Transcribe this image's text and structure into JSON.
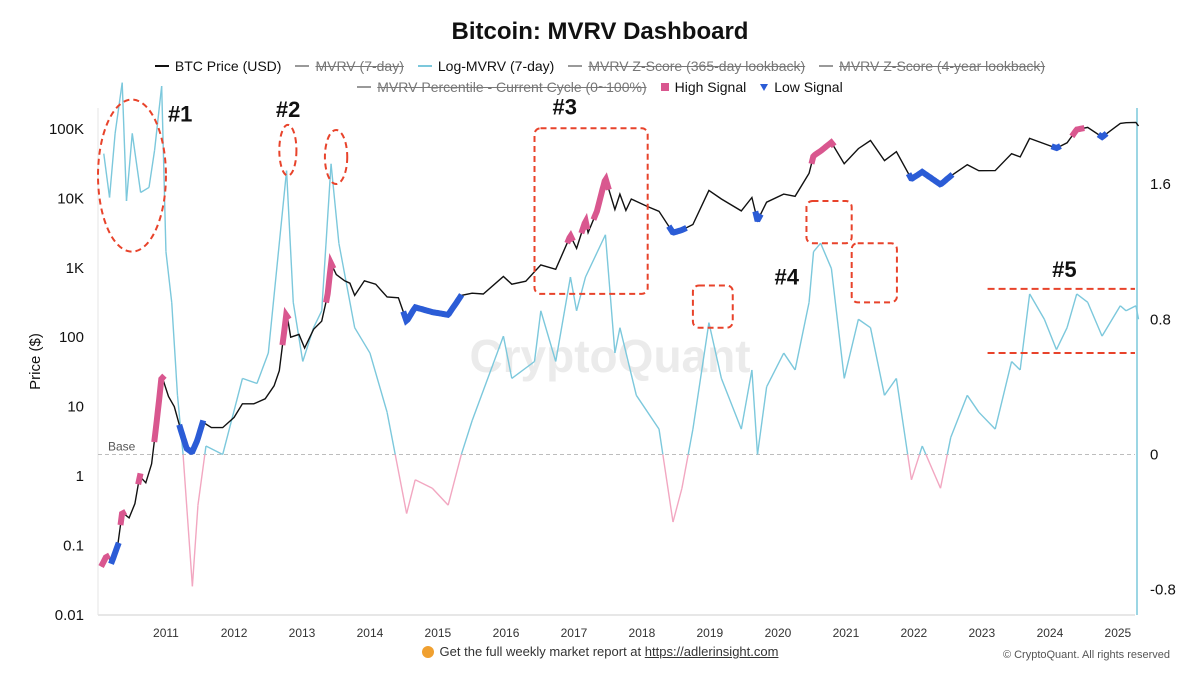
{
  "chart_data": {
    "type": "line",
    "title": "Bitcoin: MVRV Dashboard",
    "ylabel": "Price ($)",
    "y_scale": "log",
    "ylim": [
      0.01,
      200000
    ],
    "y2lim": [
      -0.95,
      2.05
    ],
    "x_range": [
      "2010-07",
      "2025-10"
    ],
    "x_ticks": [
      "2011",
      "2012",
      "2013",
      "2014",
      "2015",
      "2016",
      "2017",
      "2018",
      "2019",
      "2020",
      "2021",
      "2022",
      "2023",
      "2024",
      "2025"
    ],
    "y_ticks": [
      "0.01",
      "0.1",
      "1",
      "10",
      "100",
      "1K",
      "10K",
      "100K"
    ],
    "y2_ticks": [
      "-0.8",
      "0",
      "0.8",
      "1.6"
    ],
    "base_label": "Base",
    "legend": [
      {
        "label": "BTC Price (USD)",
        "color": "#111111",
        "marker": "line",
        "active": true
      },
      {
        "label": "MVRV (7-day)",
        "color": "#999999",
        "marker": "line",
        "active": false
      },
      {
        "label": "Log-MVRV (7-day)",
        "color": "#7cc8dc",
        "marker": "line",
        "active": true
      },
      {
        "label": "MVRV Z-Score (365-day lookback)",
        "color": "#999999",
        "marker": "line",
        "active": false
      },
      {
        "label": "MVRV Z-Score (4-year lookback)",
        "color": "#999999",
        "marker": "line",
        "active": false
      },
      {
        "label": "MVRV Percentile - Current Cycle (0~100%)",
        "color": "#999999",
        "marker": "line",
        "active": false
      },
      {
        "label": "High Signal",
        "color": "#d9578f",
        "marker": "square",
        "active": true
      },
      {
        "label": "Low Signal",
        "color": "#2b5cd6",
        "marker": "triangle",
        "active": true
      }
    ],
    "series": [
      {
        "name": "BTC Price (USD)",
        "axis": "left",
        "color": "#111111",
        "points": [
          [
            "2010-07-18",
            0.05
          ],
          [
            "2010-08-15",
            0.07
          ],
          [
            "2010-09-15",
            0.06
          ],
          [
            "2010-10-15",
            0.1
          ],
          [
            "2010-11-08",
            0.3
          ],
          [
            "2010-12-15",
            0.25
          ],
          [
            "2011-01-15",
            0.4
          ],
          [
            "2011-02-10",
            1.0
          ],
          [
            "2011-03-15",
            0.8
          ],
          [
            "2011-04-15",
            1.5
          ],
          [
            "2011-05-15",
            7
          ],
          [
            "2011-06-08",
            28
          ],
          [
            "2011-07-15",
            14
          ],
          [
            "2011-08-15",
            10
          ],
          [
            "2011-09-15",
            5
          ],
          [
            "2011-10-20",
            2.5
          ],
          [
            "2011-11-18",
            2.2
          ],
          [
            "2011-12-15",
            3.2
          ],
          [
            "2012-01-15",
            6
          ],
          [
            "2012-03-01",
            5
          ],
          [
            "2012-05-01",
            5
          ],
          [
            "2012-07-01",
            7
          ],
          [
            "2012-08-15",
            11
          ],
          [
            "2012-10-15",
            11
          ],
          [
            "2012-12-15",
            13
          ],
          [
            "2013-02-01",
            20
          ],
          [
            "2013-03-01",
            33
          ],
          [
            "2013-04-09",
            230
          ],
          [
            "2013-05-01",
            100
          ],
          [
            "2013-06-15",
            110
          ],
          [
            "2013-07-15",
            70
          ],
          [
            "2013-09-01",
            130
          ],
          [
            "2013-10-15",
            170
          ],
          [
            "2013-11-15",
            400
          ],
          [
            "2013-12-04",
            1150
          ],
          [
            "2014-01-01",
            800
          ],
          [
            "2014-02-15",
            650
          ],
          [
            "2014-03-15",
            600
          ],
          [
            "2014-04-10",
            400
          ],
          [
            "2014-06-01",
            650
          ],
          [
            "2014-08-01",
            580
          ],
          [
            "2014-10-01",
            380
          ],
          [
            "2014-12-01",
            370
          ],
          [
            "2015-01-14",
            170
          ],
          [
            "2015-03-01",
            270
          ],
          [
            "2015-06-01",
            230
          ],
          [
            "2015-08-25",
            210
          ],
          [
            "2015-11-04",
            400
          ],
          [
            "2016-01-01",
            430
          ],
          [
            "2016-03-01",
            420
          ],
          [
            "2016-06-17",
            750
          ],
          [
            "2016-08-01",
            580
          ],
          [
            "2016-10-15",
            640
          ],
          [
            "2017-01-04",
            1100
          ],
          [
            "2017-03-25",
            950
          ],
          [
            "2017-06-12",
            2900
          ],
          [
            "2017-07-15",
            1900
          ],
          [
            "2017-09-01",
            4800
          ],
          [
            "2017-09-15",
            3200
          ],
          [
            "2017-11-01",
            6500
          ],
          [
            "2017-12-17",
            19500
          ],
          [
            "2018-02-06",
            6900
          ],
          [
            "2018-03-05",
            11500
          ],
          [
            "2018-04-06",
            6700
          ],
          [
            "2018-05-05",
            9800
          ],
          [
            "2018-08-01",
            7600
          ],
          [
            "2018-10-01",
            6500
          ],
          [
            "2018-12-15",
            3200
          ],
          [
            "2019-02-01",
            3500
          ],
          [
            "2019-04-01",
            4200
          ],
          [
            "2019-06-26",
            13000
          ],
          [
            "2019-09-01",
            9800
          ],
          [
            "2019-12-17",
            6600
          ],
          [
            "2020-02-12",
            10300
          ],
          [
            "2020-03-13",
            4800
          ],
          [
            "2020-05-01",
            8800
          ],
          [
            "2020-08-01",
            11500
          ],
          [
            "2020-10-01",
            10700
          ],
          [
            "2020-12-15",
            23000
          ],
          [
            "2021-01-08",
            41000
          ],
          [
            "2021-02-15",
            48000
          ],
          [
            "2021-04-14",
            64000
          ],
          [
            "2021-06-22",
            31500
          ],
          [
            "2021-09-06",
            52000
          ],
          [
            "2021-11-10",
            68000
          ],
          [
            "2022-01-24",
            35000
          ],
          [
            "2022-03-29",
            47000
          ],
          [
            "2022-06-18",
            19000
          ],
          [
            "2022-08-15",
            24000
          ],
          [
            "2022-11-21",
            15800
          ],
          [
            "2023-01-15",
            21000
          ],
          [
            "2023-04-14",
            30500
          ],
          [
            "2023-06-15",
            25000
          ],
          [
            "2023-09-11",
            25100
          ],
          [
            "2023-12-08",
            44000
          ],
          [
            "2024-01-23",
            39500
          ],
          [
            "2024-03-14",
            73000
          ],
          [
            "2024-08-05",
            53000
          ],
          [
            "2024-10-01",
            63000
          ],
          [
            "2024-11-22",
            98000
          ],
          [
            "2025-01-20",
            105000
          ],
          [
            "2025-04-07",
            76500
          ],
          [
            "2025-07-14",
            120000
          ],
          [
            "2025-08-14",
            123000
          ],
          [
            "2025-10-06",
            124000
          ],
          [
            "2025-10-20",
            110000
          ]
        ]
      },
      {
        "name": "Log-MVRV (7-day)",
        "axis": "right",
        "color": "#7cc8dc",
        "negative_color": "#f2a7c1",
        "points": [
          [
            "2010-08-01",
            1.78
          ],
          [
            "2010-09-01",
            1.52
          ],
          [
            "2010-10-01",
            1.9
          ],
          [
            "2010-11-08",
            2.2
          ],
          [
            "2010-12-01",
            1.5
          ],
          [
            "2011-01-01",
            1.9
          ],
          [
            "2011-02-15",
            1.55
          ],
          [
            "2011-04-01",
            1.58
          ],
          [
            "2011-05-01",
            1.8
          ],
          [
            "2011-06-08",
            2.18
          ],
          [
            "2011-07-01",
            1.2
          ],
          [
            "2011-08-01",
            0.9
          ],
          [
            "2011-09-01",
            0.35
          ],
          [
            "2011-10-01",
            0.0
          ],
          [
            "2011-11-20",
            -0.78
          ],
          [
            "2011-12-20",
            -0.3
          ],
          [
            "2012-02-01",
            0.05
          ],
          [
            "2012-05-01",
            0.0
          ],
          [
            "2012-08-15",
            0.45
          ],
          [
            "2012-11-01",
            0.42
          ],
          [
            "2013-01-01",
            0.6
          ],
          [
            "2013-04-09",
            1.68
          ],
          [
            "2013-05-15",
            0.9
          ],
          [
            "2013-07-05",
            0.55
          ],
          [
            "2013-09-01",
            0.75
          ],
          [
            "2013-10-15",
            0.85
          ],
          [
            "2013-12-04",
            1.72
          ],
          [
            "2014-01-15",
            1.25
          ],
          [
            "2014-04-10",
            0.75
          ],
          [
            "2014-07-01",
            0.6
          ],
          [
            "2014-10-01",
            0.25
          ],
          [
            "2015-01-14",
            -0.35
          ],
          [
            "2015-03-01",
            -0.15
          ],
          [
            "2015-06-01",
            -0.2
          ],
          [
            "2015-08-25",
            -0.3
          ],
          [
            "2015-11-04",
            0.0
          ],
          [
            "2016-01-01",
            0.2
          ],
          [
            "2016-06-17",
            0.7
          ],
          [
            "2016-08-01",
            0.45
          ],
          [
            "2016-12-01",
            0.55
          ],
          [
            "2017-01-04",
            0.85
          ],
          [
            "2017-03-25",
            0.55
          ],
          [
            "2017-06-12",
            1.05
          ],
          [
            "2017-07-15",
            0.85
          ],
          [
            "2017-09-01",
            1.05
          ],
          [
            "2017-12-17",
            1.3
          ],
          [
            "2018-02-06",
            0.6
          ],
          [
            "2018-03-05",
            0.75
          ],
          [
            "2018-06-01",
            0.35
          ],
          [
            "2018-10-01",
            0.15
          ],
          [
            "2018-12-15",
            -0.4
          ],
          [
            "2019-02-01",
            -0.2
          ],
          [
            "2019-04-01",
            0.15
          ],
          [
            "2019-06-26",
            0.78
          ],
          [
            "2019-09-01",
            0.45
          ],
          [
            "2019-12-17",
            0.15
          ],
          [
            "2020-02-12",
            0.5
          ],
          [
            "2020-03-13",
            0.0
          ],
          [
            "2020-05-01",
            0.4
          ],
          [
            "2020-08-01",
            0.6
          ],
          [
            "2020-10-01",
            0.5
          ],
          [
            "2020-12-15",
            0.9
          ],
          [
            "2021-01-08",
            1.2
          ],
          [
            "2021-02-15",
            1.25
          ],
          [
            "2021-04-14",
            1.1
          ],
          [
            "2021-06-22",
            0.45
          ],
          [
            "2021-09-06",
            0.8
          ],
          [
            "2021-11-10",
            0.75
          ],
          [
            "2022-01-24",
            0.35
          ],
          [
            "2022-03-29",
            0.45
          ],
          [
            "2022-06-18",
            -0.15
          ],
          [
            "2022-08-15",
            0.05
          ],
          [
            "2022-11-21",
            -0.2
          ],
          [
            "2023-01-15",
            0.1
          ],
          [
            "2023-04-14",
            0.35
          ],
          [
            "2023-06-15",
            0.25
          ],
          [
            "2023-09-11",
            0.15
          ],
          [
            "2023-12-08",
            0.55
          ],
          [
            "2024-01-23",
            0.5
          ],
          [
            "2024-03-14",
            0.95
          ],
          [
            "2024-06-01",
            0.8
          ],
          [
            "2024-08-05",
            0.62
          ],
          [
            "2024-10-01",
            0.75
          ],
          [
            "2024-11-22",
            0.95
          ],
          [
            "2025-01-20",
            0.9
          ],
          [
            "2025-04-07",
            0.7
          ],
          [
            "2025-07-14",
            0.88
          ],
          [
            "2025-08-14",
            0.85
          ],
          [
            "2025-10-06",
            0.88
          ],
          [
            "2025-10-20",
            0.8
          ]
        ]
      }
    ],
    "high_signal_ranges": [
      [
        "2010-07-25",
        "2010-08-20"
      ],
      [
        "2010-11-01",
        "2010-11-15"
      ],
      [
        "2011-02-05",
        "2011-02-15"
      ],
      [
        "2011-05-01",
        "2011-06-15"
      ],
      [
        "2013-03-20",
        "2013-04-15"
      ],
      [
        "2013-11-10",
        "2013-12-10"
      ],
      [
        "2017-06-01",
        "2017-06-20"
      ],
      [
        "2017-08-15",
        "2017-09-10"
      ],
      [
        "2017-10-20",
        "2017-12-31"
      ],
      [
        "2021-01-01",
        "2021-04-20"
      ],
      [
        "2024-11-05",
        "2024-12-20"
      ]
    ],
    "low_signal_ranges": [
      [
        "2010-09-15",
        "2010-10-20"
      ],
      [
        "2011-09-15",
        "2012-01-15"
      ],
      [
        "2015-01-01",
        "2015-11-01"
      ],
      [
        "2018-12-01",
        "2019-02-15"
      ],
      [
        "2020-03-05",
        "2020-03-25"
      ],
      [
        "2022-06-10",
        "2023-01-15"
      ],
      [
        "2024-07-25",
        "2024-08-15"
      ],
      [
        "2025-04-01",
        "2025-04-20"
      ]
    ],
    "annotations": [
      {
        "label": "#1",
        "shape": "ellipse",
        "from": "2010-07",
        "to": "2011-07",
        "y2_from": 1.2,
        "y2_to": 2.1
      },
      {
        "label": "#2",
        "shape": "ellipse",
        "from": "2013-03",
        "to": "2013-06",
        "y2_from": 1.65,
        "y2_to": 1.95
      },
      {
        "label": "",
        "shape": "ellipse",
        "from": "2013-11",
        "to": "2014-03",
        "y2_from": 1.6,
        "y2_to": 1.92
      },
      {
        "label": "#3",
        "shape": "rect",
        "from": "2016-12",
        "to": "2018-08",
        "y2_from": 0.95,
        "y2_to": 1.93
      },
      {
        "label": "",
        "shape": "rect",
        "from": "2019-04",
        "to": "2019-11",
        "y2_from": 0.75,
        "y2_to": 1.0
      },
      {
        "label": "#4",
        "shape": "rect",
        "from": "2020-12",
        "to": "2021-08",
        "y2_from": 1.25,
        "y2_to": 1.5
      },
      {
        "label": "",
        "shape": "rect",
        "from": "2021-08",
        "to": "2022-04",
        "y2_from": 0.9,
        "y2_to": 1.25
      },
      {
        "label": "#5",
        "shape": "hlines",
        "from": "2023-08",
        "to": "2025-11",
        "y2_from": 0.6,
        "y2_to": 0.98
      }
    ],
    "watermark": "CryptoQuant"
  },
  "footer": {
    "text": "Get the full weekly market report at",
    "link": "https://adlerinsight.com"
  },
  "copyright": "© CryptoQuant. All rights reserved"
}
